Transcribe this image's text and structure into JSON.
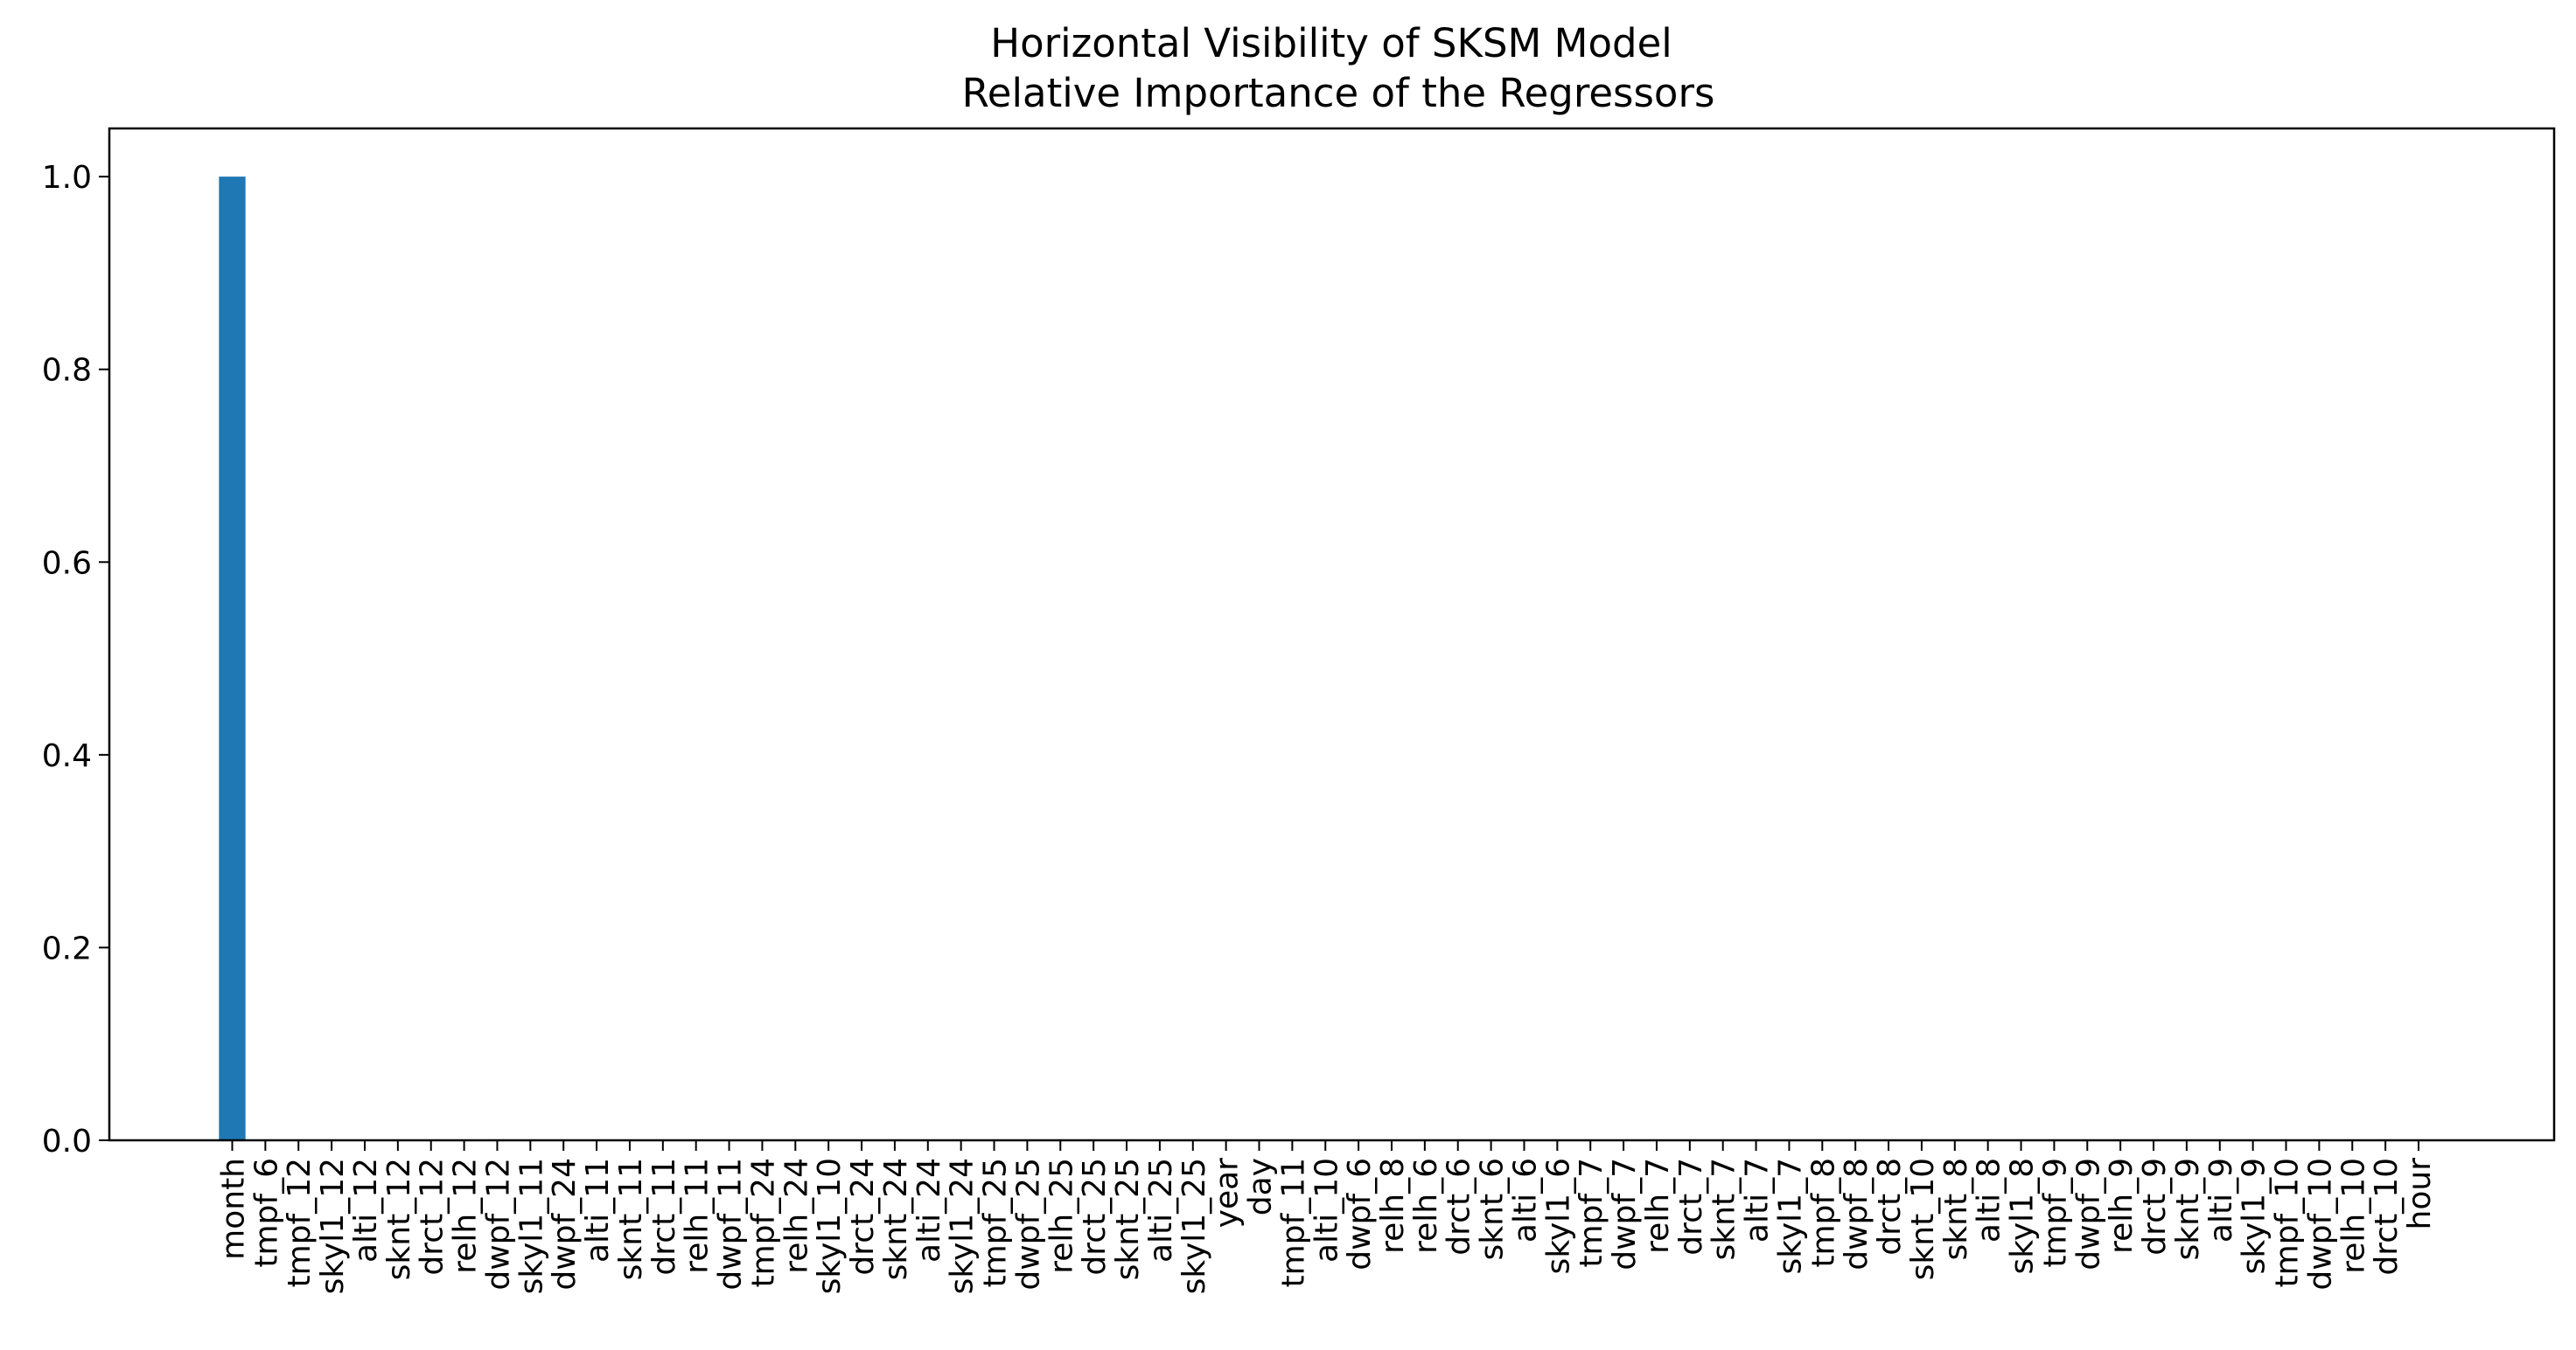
{
  "chart_data": {
    "type": "bar",
    "title": "Horizontal Visibility of SKSM Model",
    "subtitle": "Relative Importance of the Regressors",
    "xlabel": "",
    "ylabel": "",
    "ylim": [
      0.0,
      1.05
    ],
    "yticks": [
      0.0,
      0.2,
      0.4,
      0.6,
      0.8,
      1.0
    ],
    "ytick_labels": [
      "0.0",
      "0.2",
      "0.4",
      "0.6",
      "0.8",
      "1.0"
    ],
    "grid": false,
    "legend": "none",
    "bar_color": "#1f77b4",
    "categories": [
      "month",
      "tmpf_6",
      "tmpf_12",
      "skyl1_12",
      "alti_12",
      "sknt_12",
      "drct_12",
      "relh_12",
      "dwpf_12",
      "skyl1_11",
      "dwpf_24",
      "alti_11",
      "sknt_11",
      "drct_11",
      "relh_11",
      "dwpf_11",
      "tmpf_24",
      "relh_24",
      "skyl1_10",
      "drct_24",
      "sknt_24",
      "alti_24",
      "skyl1_24",
      "tmpf_25",
      "dwpf_25",
      "relh_25",
      "drct_25",
      "sknt_25",
      "alti_25",
      "skyl1_25",
      "year",
      "day",
      "tmpf_11",
      "alti_10",
      "dwpf_6",
      "relh_8",
      "relh_6",
      "drct_6",
      "sknt_6",
      "alti_6",
      "skyl1_6",
      "tmpf_7",
      "dwpf_7",
      "relh_7",
      "drct_7",
      "sknt_7",
      "alti_7",
      "skyl1_7",
      "tmpf_8",
      "dwpf_8",
      "drct_8",
      "sknt_10",
      "sknt_8",
      "alti_8",
      "skyl1_8",
      "tmpf_9",
      "dwpf_9",
      "relh_9",
      "drct_9",
      "sknt_9",
      "alti_9",
      "skyl1_9",
      "tmpf_10",
      "dwpf_10",
      "relh_10",
      "drct_10",
      "hour"
    ],
    "values": [
      1.0,
      0,
      0,
      0,
      0,
      0,
      0,
      0,
      0,
      0,
      0,
      0,
      0,
      0,
      0,
      0,
      0,
      0,
      0,
      0,
      0,
      0,
      0,
      0,
      0,
      0,
      0,
      0,
      0,
      0,
      0,
      0,
      0,
      0,
      0,
      0,
      0,
      0,
      0,
      0,
      0,
      0,
      0,
      0,
      0,
      0,
      0,
      0,
      0,
      0,
      0,
      0,
      0,
      0,
      0,
      0,
      0,
      0,
      0,
      0,
      0,
      0,
      0,
      0,
      0,
      0,
      0
    ]
  }
}
